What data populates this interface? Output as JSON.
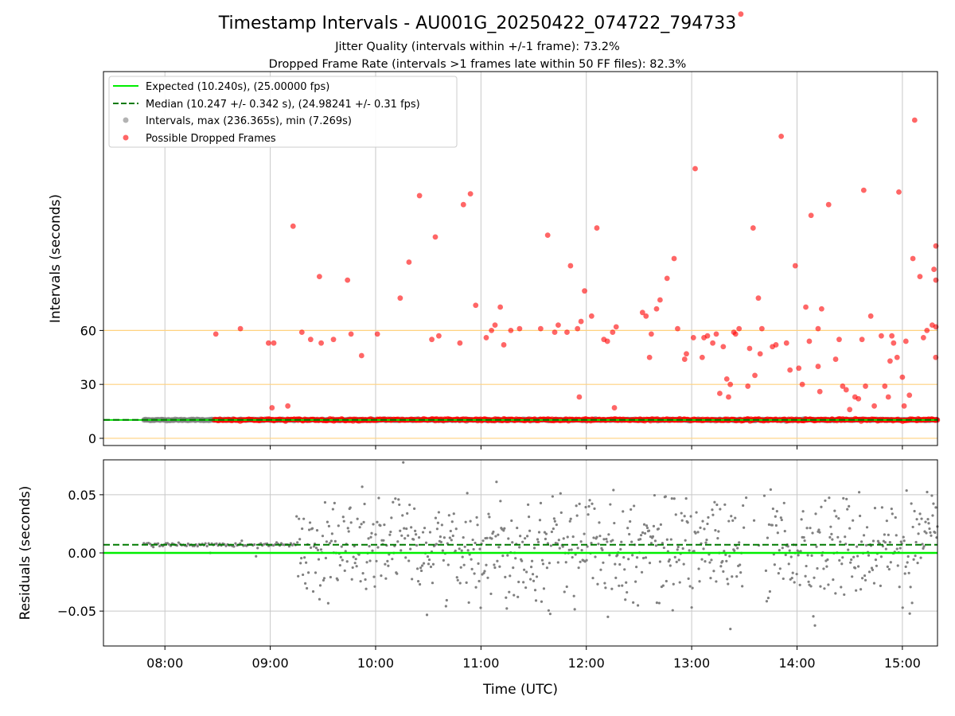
{
  "figure": {
    "title": "Timestamp Intervals - AU001G_20250422_074722_794733",
    "subtitle_1": "Jitter Quality (intervals within +/-1 frame): 73.2%",
    "subtitle_2": "Dropped Frame Rate (intervals >1 frames late within 50 FF files): 82.3%"
  },
  "colors": {
    "expected": "#00ee00",
    "median": "#007a00",
    "intervals": "#808080",
    "dropped": "#ff0000",
    "threshold": "#ffd27f",
    "grid": "#c8c8c8"
  },
  "chart_data": [
    {
      "type": "scatter",
      "ylabel": "Intervals (seconds)",
      "x_range": [
        "07:25",
        "15:20"
      ],
      "y_range": [
        -4,
        204
      ],
      "yticks": [
        0,
        30,
        60
      ],
      "hlines": [
        0,
        30,
        60
      ],
      "grid": "vertical",
      "legend_position": "top-left",
      "legend": [
        "Expected (10.240s), (25.00000 fps)",
        "Median (10.247 +/- 0.342 s), (24.98241 +/- 0.31 fps)",
        "Intervals, max (236.365s), min (7.269s)",
        "Possible Dropped Frames"
      ],
      "expected_value": 10.24,
      "median_value": 10.247,
      "series": [
        {
          "x_start": "07:48",
          "x_end": "15:20",
          "baseline": 10.25,
          "spread": 0.5
        },
        {
          "x_start": "08:28",
          "x_end": "15:20",
          "baseline": 10.3,
          "spread": 0.6,
          "outliers": [
            [
              "08:29",
              58
            ],
            [
              "08:43",
              61
            ],
            [
              "08:59",
              53
            ],
            [
              "09:02",
              53
            ],
            [
              "09:01",
              17
            ],
            [
              "09:10",
              18
            ],
            [
              "09:13",
              118
            ],
            [
              "09:18",
              59
            ],
            [
              "09:23",
              55
            ],
            [
              "09:28",
              90
            ],
            [
              "09:29",
              53
            ],
            [
              "09:36",
              55
            ],
            [
              "09:44",
              88
            ],
            [
              "09:46",
              58
            ],
            [
              "09:52",
              46
            ],
            [
              "10:01",
              58
            ],
            [
              "10:14",
              78
            ],
            [
              "10:19",
              98
            ],
            [
              "10:25",
              135
            ],
            [
              "10:32",
              55
            ],
            [
              "10:34",
              112
            ],
            [
              "10:36",
              57
            ],
            [
              "10:48",
              53
            ],
            [
              "10:50",
              130
            ],
            [
              "10:54",
              136
            ],
            [
              "10:57",
              74
            ],
            [
              "11:03",
              56
            ],
            [
              "11:06",
              60
            ],
            [
              "11:08",
              63
            ],
            [
              "11:11",
              73
            ],
            [
              "11:13",
              52
            ],
            [
              "11:17",
              60
            ],
            [
              "11:22",
              61
            ],
            [
              "11:34",
              61
            ],
            [
              "11:38",
              113
            ],
            [
              "11:42",
              59
            ],
            [
              "11:44",
              63
            ],
            [
              "11:49",
              59
            ],
            [
              "11:51",
              96
            ],
            [
              "11:55",
              61
            ],
            [
              "11:57",
              65
            ],
            [
              "11:56",
              23
            ],
            [
              "11:59",
              82
            ],
            [
              "12:03",
              68
            ],
            [
              "12:06",
              117
            ],
            [
              "12:10",
              55
            ],
            [
              "12:12",
              54
            ],
            [
              "12:15",
              59
            ],
            [
              "12:17",
              62
            ],
            [
              "12:16",
              17
            ],
            [
              "12:32",
              70
            ],
            [
              "12:34",
              68
            ],
            [
              "12:37",
              58
            ],
            [
              "12:36",
              45
            ],
            [
              "12:40",
              72
            ],
            [
              "12:42",
              77
            ],
            [
              "12:46",
              89
            ],
            [
              "12:50",
              100
            ],
            [
              "12:52",
              61
            ],
            [
              "12:56",
              44
            ],
            [
              "12:57",
              47
            ],
            [
              "13:01",
              56
            ],
            [
              "13:02",
              150
            ],
            [
              "13:06",
              45
            ],
            [
              "13:07",
              56
            ],
            [
              "13:09",
              57
            ],
            [
              "13:12",
              53
            ],
            [
              "13:14",
              58
            ],
            [
              "13:16",
              25
            ],
            [
              "13:18",
              51
            ],
            [
              "13:20",
              33
            ],
            [
              "13:21",
              23
            ],
            [
              "13:22",
              30
            ],
            [
              "13:25",
              58
            ],
            [
              "13:24",
              59
            ],
            [
              "13:27",
              61
            ],
            [
              "13:28",
              236
            ],
            [
              "13:32",
              29
            ],
            [
              "13:33",
              50
            ],
            [
              "13:35",
              117
            ],
            [
              "13:36",
              35
            ],
            [
              "13:38",
              78
            ],
            [
              "13:40",
              61
            ],
            [
              "13:39",
              47
            ],
            [
              "13:46",
              51
            ],
            [
              "13:48",
              52
            ],
            [
              "13:51",
              168
            ],
            [
              "13:54",
              53
            ],
            [
              "13:56",
              38
            ],
            [
              "13:59",
              96
            ],
            [
              "14:01",
              39
            ],
            [
              "14:03",
              30
            ],
            [
              "14:05",
              73
            ],
            [
              "14:07",
              54
            ],
            [
              "14:08",
              124
            ],
            [
              "14:12",
              40
            ],
            [
              "14:12",
              61
            ],
            [
              "14:13",
              26
            ],
            [
              "14:14",
              72
            ],
            [
              "14:18",
              130
            ],
            [
              "14:22",
              44
            ],
            [
              "14:24",
              55
            ],
            [
              "14:26",
              29
            ],
            [
              "14:28",
              27
            ],
            [
              "14:30",
              16
            ],
            [
              "14:33",
              23
            ],
            [
              "14:35",
              22
            ],
            [
              "14:37",
              55
            ],
            [
              "14:38",
              138
            ],
            [
              "14:39",
              29
            ],
            [
              "14:42",
              68
            ],
            [
              "14:44",
              18
            ],
            [
              "14:48",
              57
            ],
            [
              "14:50",
              29
            ],
            [
              "14:52",
              23
            ],
            [
              "14:53",
              43
            ],
            [
              "14:54",
              57
            ],
            [
              "14:55",
              53
            ],
            [
              "14:57",
              45
            ],
            [
              "14:58",
              137
            ],
            [
              "15:00",
              34
            ],
            [
              "15:02",
              54
            ],
            [
              "15:01",
              18
            ],
            [
              "15:04",
              24
            ],
            [
              "15:06",
              100
            ],
            [
              "15:07",
              177
            ],
            [
              "15:10",
              90
            ],
            [
              "15:12",
              56
            ],
            [
              "15:14",
              60
            ],
            [
              "15:17",
              63
            ],
            [
              "15:18",
              94
            ],
            [
              "15:19",
              45
            ],
            [
              "15:21",
              88
            ],
            [
              "15:23",
              62
            ],
            [
              "15:25",
              107
            ]
          ]
        }
      ]
    },
    {
      "type": "scatter",
      "ylabel": "Residuals (seconds)",
      "xlabel": "Time (UTC)",
      "x_range": [
        "07:25",
        "15:20"
      ],
      "y_range": [
        -0.08,
        0.08
      ],
      "xticks": [
        "08:00",
        "09:00",
        "10:00",
        "11:00",
        "12:00",
        "13:00",
        "14:00",
        "15:00"
      ],
      "yticks": [
        0.05,
        0.0,
        -0.05
      ],
      "ytick_labels": [
        "0.05",
        "0.00",
        "−0.05"
      ],
      "grid": "both",
      "expected_residual": 0.0,
      "median_residual": 0.007,
      "series": [
        {
          "segment": "stable",
          "x_start": "07:48",
          "x_end": "09:15",
          "mean": 0.007,
          "spread": 0.003
        },
        {
          "segment": "noisy",
          "x_start": "09:15",
          "x_end": "15:20",
          "mean": 0.005,
          "spread": 0.032
        }
      ]
    }
  ]
}
